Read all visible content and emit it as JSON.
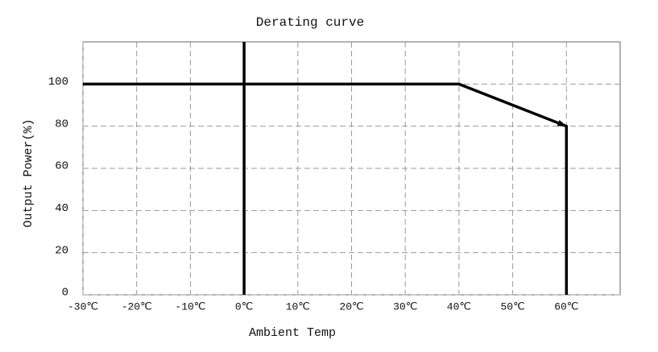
{
  "chart_data": {
    "type": "line",
    "title": "Derating curve",
    "x_label": "Ambient Temp",
    "y_label": "Output Power(%)",
    "x": [
      -30,
      40,
      60,
      60
    ],
    "values": [
      100,
      100,
      80,
      0
    ],
    "color": "#000000",
    "xlim": [
      -30,
      70
    ],
    "xticks": [
      {
        "value": -30,
        "label": "-30℃"
      },
      {
        "value": -20,
        "label": "-20℃"
      },
      {
        "value": -10,
        "label": "-10℃"
      },
      {
        "value": 0,
        "label": "0℃"
      },
      {
        "value": 10,
        "label": "10℃"
      },
      {
        "value": 20,
        "label": "20℃"
      },
      {
        "value": 30,
        "label": "30℃"
      },
      {
        "value": 40,
        "label": "40℃"
      },
      {
        "value": 50,
        "label": "50℃"
      },
      {
        "value": 60,
        "label": "60℃"
      }
    ],
    "ylim": [
      0,
      120
    ],
    "yticks": [
      0,
      20,
      40,
      60,
      80,
      100
    ],
    "grid": true
  }
}
